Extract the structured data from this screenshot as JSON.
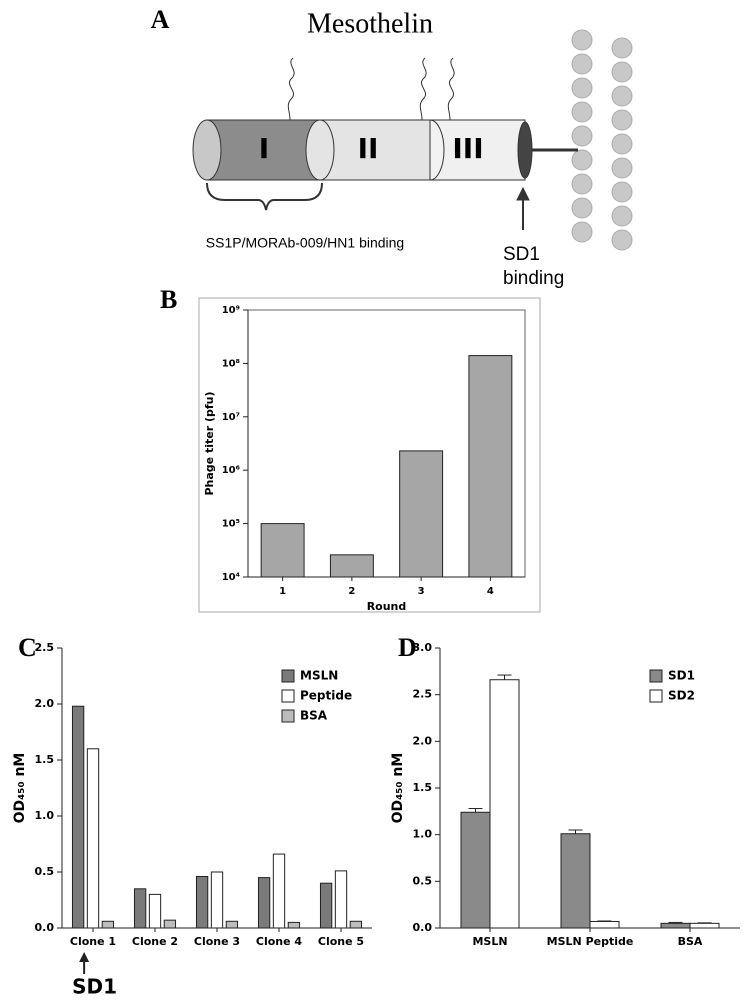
{
  "diagram": {
    "panel_label": "A",
    "title": "Mesothelin",
    "domains": [
      "I",
      "II",
      "III"
    ],
    "annotations": [
      "SS1P/MORAb-009/HN1 binding",
      "SD1 binding"
    ]
  },
  "chart_data": [
    {
      "type": "bar",
      "panel_label": "B",
      "categories": [
        "1",
        "2",
        "3",
        "4"
      ],
      "values": [
        100000,
        26000,
        2300000,
        140000000
      ],
      "color": "#a6a6a6",
      "log_scale": true,
      "ylim": [
        10000,
        1000000000
      ],
      "yticks": [
        {
          "value": 10000,
          "label": "10⁴"
        },
        {
          "value": 100000,
          "label": "10⁵"
        },
        {
          "value": 1000000,
          "label": "10⁶"
        },
        {
          "value": 10000000,
          "label": "10⁷"
        },
        {
          "value": 100000000,
          "label": "10⁸"
        },
        {
          "value": 1000000000,
          "label": "10⁹"
        }
      ],
      "xlabel": "Round",
      "ylabel": "Phage titer (pfu)"
    },
    {
      "type": "bar",
      "panel_label": "C",
      "categories": [
        "Clone 1",
        "Clone 2",
        "Clone 3",
        "Clone 4",
        "Clone 5"
      ],
      "series": [
        {
          "name": "MSLN",
          "color": "#7a7a7a",
          "values": [
            1.98,
            0.35,
            0.46,
            0.45,
            0.4
          ]
        },
        {
          "name": "Peptide",
          "color": "#ffffff",
          "values": [
            1.6,
            0.3,
            0.5,
            0.66,
            0.51
          ]
        },
        {
          "name": "BSA",
          "color": "#bdbdbd",
          "values": [
            0.06,
            0.07,
            0.06,
            0.05,
            0.06
          ]
        }
      ],
      "ylim": [
        0,
        2.5
      ],
      "yticks": [
        {
          "value": 0,
          "label": "0.0"
        },
        0.5,
        {
          "value": 1,
          "label": "1.0"
        },
        1.5,
        {
          "value": 2,
          "label": "2.0"
        },
        2.5
      ],
      "ylabel": "OD₄₅₀ nM",
      "legend": "upper right",
      "annotation": "SD1"
    },
    {
      "type": "bar",
      "panel_label": "D",
      "categories": [
        "MSLN",
        "MSLN Peptide",
        "BSA"
      ],
      "series": [
        {
          "name": "SD1",
          "color": "#8a8a8a",
          "values": [
            1.24,
            1.01,
            0.05
          ],
          "errors": [
            0.04,
            0.04,
            0.01
          ]
        },
        {
          "name": "SD2",
          "color": "#ffffff",
          "values": [
            2.66,
            0.07,
            0.05
          ],
          "errors": [
            0.05,
            0.005,
            0.005
          ]
        }
      ],
      "ylim": [
        0,
        3
      ],
      "yticks": [
        {
          "value": 0,
          "label": "0.0"
        },
        0.5,
        {
          "value": 1,
          "label": "1.0"
        },
        1.5,
        {
          "value": 2,
          "label": "2.0"
        },
        2.5,
        {
          "value": 3,
          "label": "3.0"
        }
      ],
      "ylabel": "OD₄₅₀ nM",
      "legend": "upper right"
    }
  ]
}
